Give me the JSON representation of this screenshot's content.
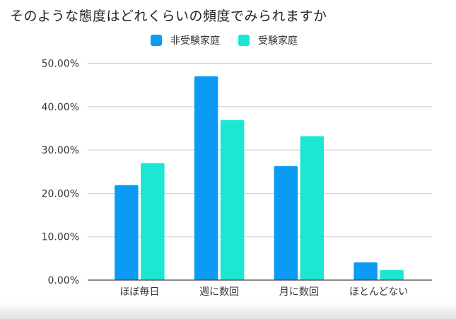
{
  "chart_data": {
    "type": "bar",
    "title": "そのような態度はどれくらいの頻度でみられますか",
    "categories": [
      "ほぼ毎日",
      "週に数回",
      "月に数回",
      "ほとんどない"
    ],
    "series": [
      {
        "name": "非受験家庭",
        "color": "#0b9bf4",
        "values": [
          21.9,
          47.0,
          26.3,
          4.1
        ]
      },
      {
        "name": "受験家庭",
        "color": "#1de6d2",
        "values": [
          27.0,
          36.9,
          33.2,
          2.3
        ]
      }
    ],
    "xlabel": "",
    "ylabel": "",
    "ylim": [
      0,
      50
    ],
    "yticks": [
      "0.00%",
      "10.00%",
      "20.00%",
      "30.00%",
      "40.00%",
      "50.00%"
    ],
    "grid": true,
    "legend_position": "top"
  }
}
